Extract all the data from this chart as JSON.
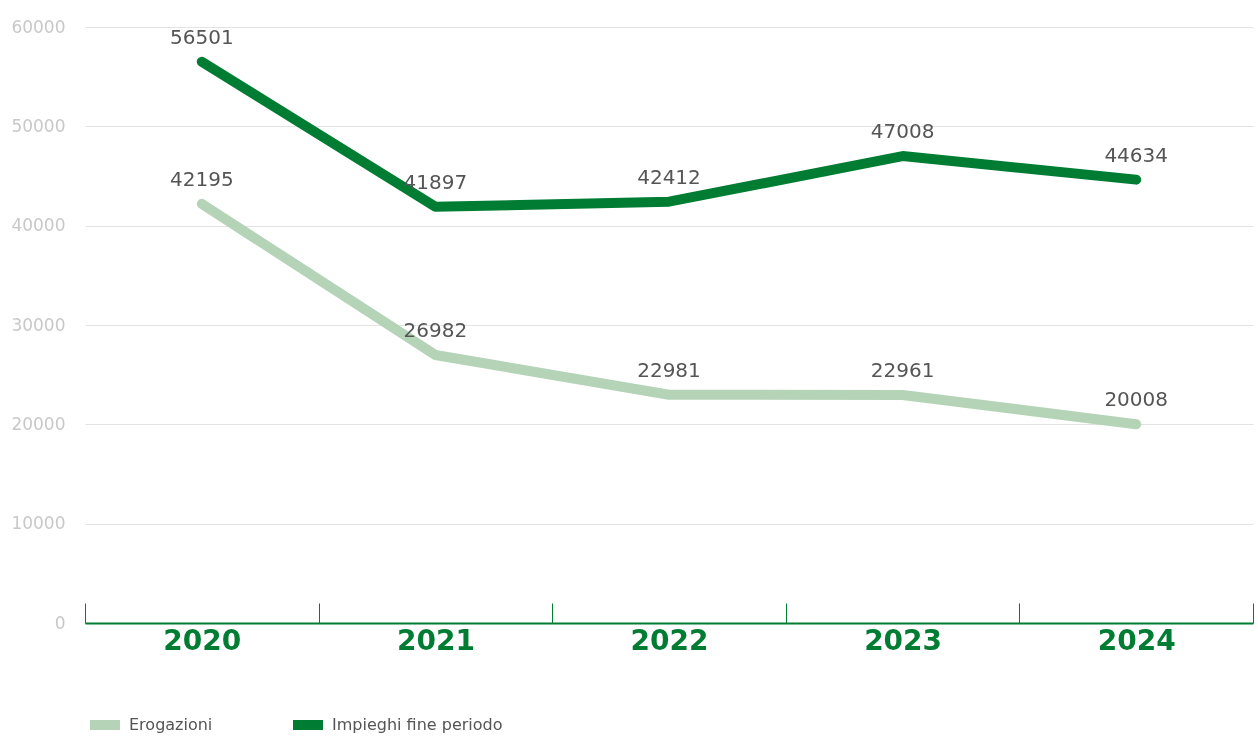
{
  "chart_data": {
    "type": "line",
    "categories": [
      "2020",
      "2021",
      "2022",
      "2023",
      "2024"
    ],
    "series": [
      {
        "name": "Erogazioni",
        "color": "#b5d3b7",
        "values": [
          42195,
          26982,
          22981,
          22961,
          20008
        ]
      },
      {
        "name": "Impieghi fine periodo",
        "color": "#007d32",
        "values": [
          56501,
          41897,
          42412,
          47008,
          44634
        ]
      }
    ],
    "ylim": [
      0,
      60000
    ],
    "yticks": [
      0,
      10000,
      20000,
      30000,
      40000,
      50000,
      60000
    ],
    "grid": "y",
    "legend": "bottom",
    "data_labels": true,
    "marker": "none",
    "line_style": "solid"
  }
}
